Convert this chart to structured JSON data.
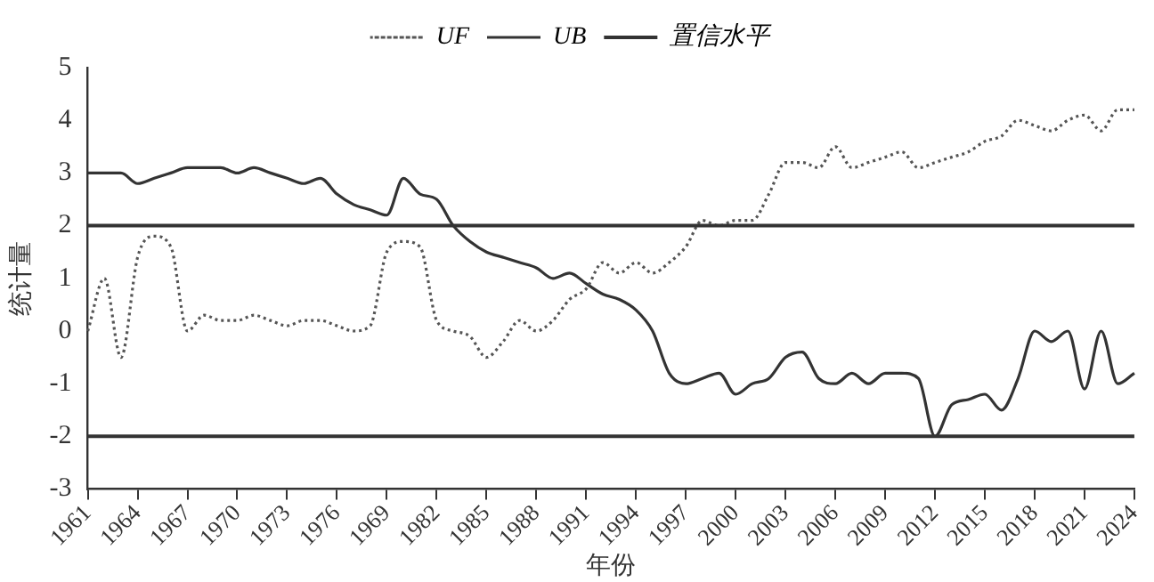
{
  "chart_data": {
    "type": "line",
    "xlabel": "年份",
    "ylabel": "统计量",
    "categories": [
      "1961",
      null,
      null,
      "1964",
      null,
      null,
      "1967",
      null,
      null,
      "1970",
      null,
      null,
      "1973",
      null,
      null,
      "1976",
      null,
      null,
      "1969",
      null,
      null,
      "1982",
      null,
      null,
      "1985",
      null,
      null,
      "1988",
      null,
      null,
      "1991",
      null,
      null,
      "1994",
      null,
      null,
      "1997",
      null,
      null,
      "2000",
      null,
      null,
      "2003",
      null,
      null,
      "2006",
      null,
      null,
      "2009",
      null,
      null,
      "2012",
      null,
      null,
      "2015",
      null,
      null,
      "2018",
      null,
      null,
      "2021",
      null,
      null,
      "2024"
    ],
    "series": [
      {
        "name": "UF",
        "color": "#555555",
        "line_style": "dotted",
        "values": [
          0.0,
          1.0,
          -0.5,
          1.4,
          1.8,
          1.6,
          0.0,
          0.3,
          0.2,
          0.2,
          0.3,
          0.2,
          0.1,
          0.2,
          0.2,
          0.1,
          0.0,
          0.1,
          1.5,
          1.7,
          1.6,
          0.2,
          0.0,
          -0.1,
          -0.5,
          -0.2,
          0.2,
          0.0,
          0.2,
          0.6,
          0.8,
          1.3,
          1.1,
          1.3,
          1.1,
          1.3,
          1.6,
          2.1,
          2.0,
          2.1,
          2.1,
          2.6,
          3.2,
          3.2,
          3.1,
          3.5,
          3.1,
          3.2,
          3.3,
          3.4,
          3.1,
          3.2,
          3.3,
          3.4,
          3.6,
          3.7,
          4.0,
          3.9,
          3.8,
          4.0,
          4.1,
          3.8,
          4.2,
          4.2
        ]
      },
      {
        "name": "UB",
        "color": "#333333",
        "line_style": "solid",
        "values": [
          3.0,
          3.0,
          3.0,
          2.8,
          2.9,
          3.0,
          3.1,
          3.1,
          3.1,
          3.0,
          3.1,
          3.0,
          2.9,
          2.8,
          2.9,
          2.6,
          2.4,
          2.3,
          2.2,
          2.9,
          2.6,
          2.5,
          2.0,
          1.7,
          1.5,
          1.4,
          1.3,
          1.2,
          1.0,
          1.1,
          0.9,
          0.7,
          0.6,
          0.4,
          0.0,
          -0.8,
          -1.0,
          -0.9,
          -0.8,
          -1.2,
          -1.0,
          -0.9,
          -0.5,
          -0.4,
          -0.9,
          -1.0,
          -0.8,
          -1.0,
          -0.8,
          -0.8,
          -0.9,
          -2.0,
          -1.4,
          -1.3,
          -1.2,
          -1.5,
          -0.9,
          0.0,
          -0.2,
          0.0,
          -1.1,
          0.0,
          -1.0,
          -0.8
        ]
      }
    ],
    "ref_lines": [
      {
        "axis": "y",
        "value": 2,
        "label": "置信水平",
        "color": "#333333"
      },
      {
        "axis": "y",
        "value": -2,
        "label": null,
        "color": "#333333"
      }
    ],
    "ylim": [
      -3,
      5
    ],
    "yticks": [
      -3,
      -2,
      -1,
      0,
      1,
      2,
      3,
      4,
      5
    ],
    "grid": false,
    "legend": "top",
    "marker": "none"
  }
}
